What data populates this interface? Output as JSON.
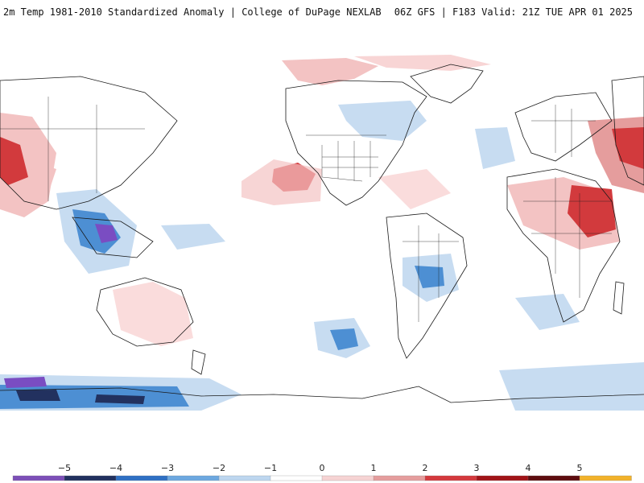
{
  "header": {
    "left_title": "2m Temp 1981-2010 Standardized Anomaly | College of DuPage NEXLAB",
    "right_title": "06Z GFS | F183 Valid: 21Z TUE APR 01 2025"
  },
  "colorbar": {
    "ticks": [
      "−5",
      "−4",
      "−3",
      "−2",
      "−1",
      "0",
      "1",
      "2",
      "3",
      "4",
      "5"
    ],
    "colors": [
      "#7c4fb8",
      "#22315f",
      "#2f70c4",
      "#6da8e0",
      "#bdd6ef",
      "#ffffff",
      "#f6d3d3",
      "#e59d9d",
      "#d4393d",
      "#a11418",
      "#5e0d0f",
      "#f2b22b"
    ]
  },
  "map": {
    "projection": "global cylindrical",
    "colors": {
      "strong_warm": "#d23a3d",
      "warm": "#f3c3c3",
      "light_warm": "#fadcdc",
      "cool": "#c7dcf1",
      "strong_cool": "#4d8fd3",
      "extreme_cool": "#7a4dc2",
      "coastline": "#1a1a1a"
    }
  }
}
